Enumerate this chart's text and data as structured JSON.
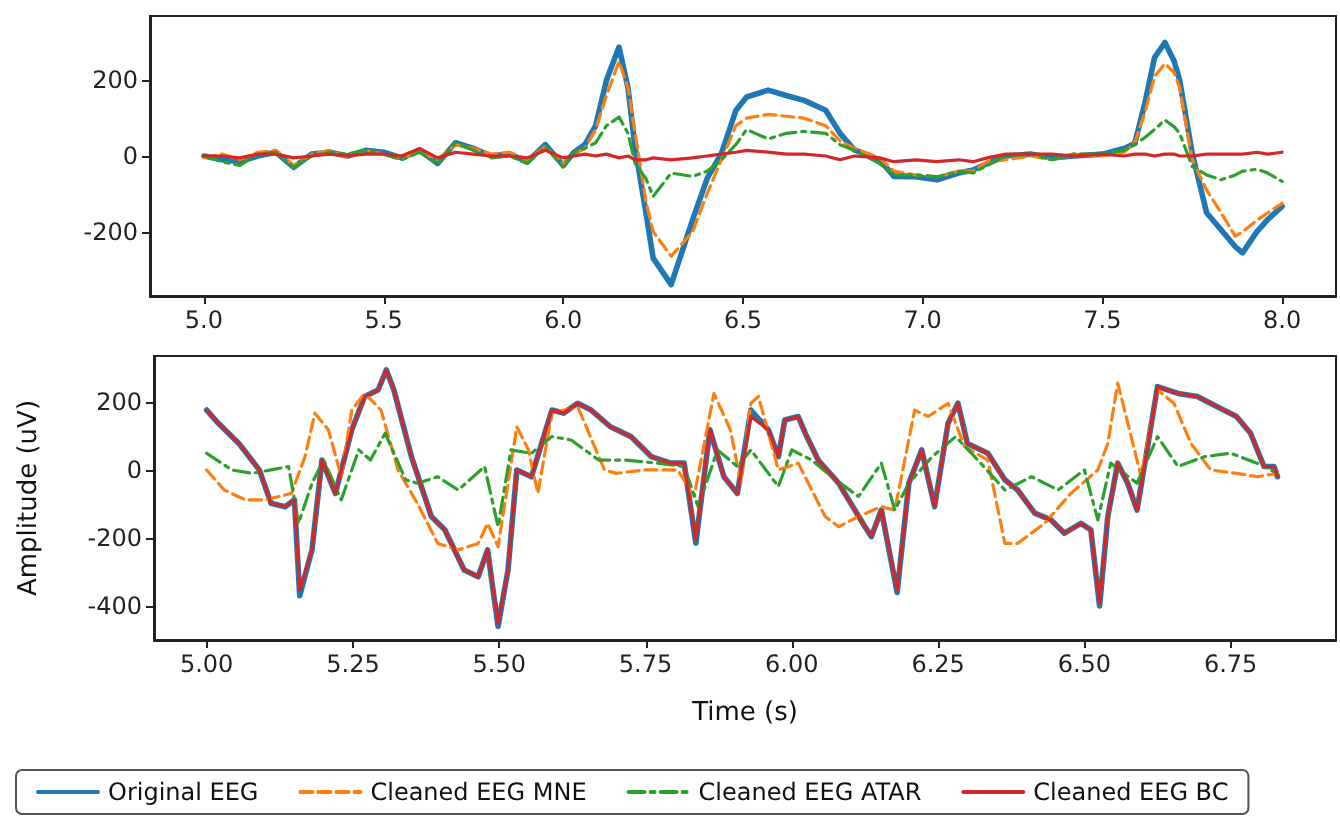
{
  "chart_data": [
    {
      "type": "line",
      "xlim": [
        4.85,
        8.15
      ],
      "ylim": [
        -370,
        370
      ],
      "xticks": [
        {
          "value": 5,
          "label": "5.0"
        },
        {
          "value": 5.5,
          "label": "5.5"
        },
        {
          "value": 6,
          "label": "6.0"
        },
        {
          "value": 6.5,
          "label": "6.5"
        },
        {
          "value": 7,
          "label": "7.0"
        },
        {
          "value": 7.5,
          "label": "7.5"
        },
        {
          "value": 8,
          "label": "8.0"
        }
      ],
      "yticks": [
        -200,
        0,
        200
      ],
      "grid": false,
      "legend": false,
      "marker": "none",
      "series": [
        {
          "color": "#1f77b4",
          "line_style": "solid",
          "x": [
            5.0,
            5.05,
            5.1,
            5.15,
            5.2,
            5.25,
            5.3,
            5.35,
            5.4,
            5.45,
            5.5,
            5.55,
            5.6,
            5.65,
            5.7,
            5.75,
            5.8,
            5.85,
            5.9,
            5.95,
            6.0,
            6.03,
            6.06,
            6.09,
            6.12,
            6.155,
            6.18,
            6.2,
            6.23,
            6.25,
            6.3,
            6.36,
            6.4,
            6.44,
            6.48,
            6.51,
            6.57,
            6.62,
            6.67,
            6.73,
            6.77,
            6.81,
            6.88,
            6.92,
            6.98,
            7.04,
            7.1,
            7.14,
            7.18,
            7.23,
            7.3,
            7.36,
            7.42,
            7.5,
            7.56,
            7.59,
            7.62,
            7.645,
            7.674,
            7.7,
            7.715,
            7.75,
            7.79,
            7.83,
            7.87,
            7.89,
            7.93,
            7.96,
            8.0
          ],
          "values": [
            0,
            -10,
            -15,
            0,
            10,
            -30,
            5,
            10,
            0,
            15,
            10,
            -5,
            15,
            -20,
            35,
            20,
            0,
            5,
            -15,
            30,
            -25,
            10,
            30,
            80,
            200,
            288,
            180,
            20,
            -150,
            -270,
            -340,
            -168,
            -60,
            7,
            120,
            156,
            174,
            160,
            147,
            121,
            60,
            16,
            -10,
            -54,
            -55,
            -63,
            -45,
            -37,
            -20,
            0,
            5,
            -5,
            0,
            5,
            20,
            33,
            147,
            260,
            300,
            250,
            200,
            7,
            -150,
            -195,
            -240,
            -256,
            -200,
            -168,
            -133
          ]
        },
        {
          "color": "#ff7f0e",
          "line_style": "dashed",
          "x": [
            5.0,
            5.05,
            5.1,
            5.15,
            5.2,
            5.25,
            5.3,
            5.35,
            5.4,
            5.45,
            5.5,
            5.55,
            5.6,
            5.65,
            5.7,
            5.75,
            5.8,
            5.85,
            5.9,
            5.95,
            6.0,
            6.03,
            6.06,
            6.09,
            6.12,
            6.155,
            6.18,
            6.2,
            6.23,
            6.25,
            6.3,
            6.36,
            6.4,
            6.44,
            6.48,
            6.51,
            6.57,
            6.62,
            6.67,
            6.73,
            6.77,
            6.81,
            6.88,
            6.92,
            6.98,
            7.04,
            7.1,
            7.14,
            7.18,
            7.23,
            7.3,
            7.36,
            7.42,
            7.5,
            7.56,
            7.59,
            7.62,
            7.645,
            7.674,
            7.7,
            7.715,
            7.75,
            7.79,
            7.83,
            7.87,
            7.89,
            7.93,
            7.96,
            8.0
          ],
          "values": [
            -5,
            5,
            -10,
            10,
            15,
            -25,
            5,
            15,
            -5,
            15,
            5,
            -5,
            10,
            -10,
            30,
            20,
            5,
            10,
            -10,
            25,
            -20,
            5,
            20,
            70,
            160,
            250,
            180,
            60,
            -120,
            -200,
            -265,
            -200,
            -100,
            -10,
            80,
            100,
            110,
            105,
            100,
            80,
            40,
            20,
            -5,
            -40,
            -50,
            -55,
            -40,
            -40,
            -15,
            -10,
            0,
            -10,
            5,
            0,
            10,
            35,
            120,
            210,
            244,
            220,
            180,
            -10,
            -90,
            -150,
            -212,
            -200,
            -170,
            -150,
            -125
          ]
        },
        {
          "color": "#2ca02c",
          "line_style": "dashdot",
          "x": [
            5.0,
            5.05,
            5.1,
            5.15,
            5.2,
            5.25,
            5.3,
            5.35,
            5.4,
            5.45,
            5.5,
            5.55,
            5.6,
            5.65,
            5.7,
            5.75,
            5.8,
            5.85,
            5.9,
            5.95,
            6.0,
            6.03,
            6.06,
            6.09,
            6.12,
            6.155,
            6.18,
            6.2,
            6.23,
            6.25,
            6.3,
            6.36,
            6.4,
            6.44,
            6.48,
            6.51,
            6.57,
            6.62,
            6.67,
            6.73,
            6.77,
            6.81,
            6.88,
            6.92,
            6.98,
            7.04,
            7.1,
            7.14,
            7.18,
            7.23,
            7.3,
            7.36,
            7.42,
            7.5,
            7.56,
            7.59,
            7.62,
            7.645,
            7.674,
            7.7,
            7.715,
            7.75,
            7.79,
            7.83,
            7.87,
            7.89,
            7.93,
            7.96,
            8.0
          ],
          "values": [
            0,
            -15,
            -25,
            5,
            10,
            -30,
            0,
            10,
            5,
            15,
            5,
            -10,
            10,
            -20,
            35,
            15,
            -5,
            0,
            -20,
            25,
            -30,
            10,
            20,
            35,
            80,
            103,
            60,
            -20,
            -60,
            -107,
            -45,
            -54,
            -40,
            -10,
            30,
            70,
            45,
            60,
            65,
            60,
            30,
            15,
            -20,
            -50,
            -50,
            -55,
            -40,
            -45,
            -25,
            0,
            5,
            -10,
            5,
            5,
            15,
            30,
            50,
            70,
            95,
            77,
            60,
            -28,
            -50,
            -63,
            -50,
            -40,
            -35,
            -45,
            -67
          ]
        },
        {
          "color": "#d62728",
          "line_style": "solid",
          "x": [
            5.0,
            5.05,
            5.1,
            5.15,
            5.2,
            5.25,
            5.3,
            5.35,
            5.4,
            5.45,
            5.5,
            5.55,
            5.6,
            5.65,
            5.7,
            5.75,
            5.8,
            5.85,
            5.9,
            5.95,
            6.0,
            6.03,
            6.06,
            6.09,
            6.12,
            6.155,
            6.18,
            6.2,
            6.23,
            6.25,
            6.3,
            6.36,
            6.4,
            6.44,
            6.48,
            6.51,
            6.57,
            6.62,
            6.67,
            6.73,
            6.77,
            6.81,
            6.88,
            6.92,
            6.98,
            7.04,
            7.1,
            7.14,
            7.18,
            7.23,
            7.3,
            7.36,
            7.42,
            7.5,
            7.56,
            7.59,
            7.62,
            7.645,
            7.674,
            7.7,
            7.715,
            7.75,
            7.79,
            7.83,
            7.87,
            7.89,
            7.93,
            7.96,
            8.0
          ],
          "values": [
            0,
            0,
            -5,
            5,
            5,
            -5,
            0,
            5,
            0,
            5,
            5,
            0,
            20,
            -5,
            10,
            5,
            0,
            0,
            -5,
            15,
            -5,
            0,
            5,
            0,
            5,
            -5,
            0,
            -10,
            -10,
            -5,
            -10,
            -5,
            0,
            5,
            10,
            15,
            10,
            5,
            5,
            0,
            -10,
            0,
            -5,
            -15,
            -10,
            -15,
            -10,
            -15,
            -5,
            5,
            5,
            5,
            0,
            5,
            0,
            5,
            5,
            0,
            5,
            5,
            0,
            0,
            5,
            5,
            5,
            5,
            10,
            5,
            10
          ]
        }
      ]
    },
    {
      "type": "line",
      "xlabel": "Time (s)",
      "ylabel": "Amplitude (uV)",
      "xlim": [
        4.91,
        6.93
      ],
      "ylim": [
        -500,
        335
      ],
      "xticks": [
        {
          "value": 5,
          "label": "5.00"
        },
        {
          "value": 5.25,
          "label": "5.25"
        },
        {
          "value": 5.5,
          "label": "5.50"
        },
        {
          "value": 5.75,
          "label": "5.75"
        },
        {
          "value": 6,
          "label": "6.00"
        },
        {
          "value": 6.25,
          "label": "6.25"
        },
        {
          "value": 6.5,
          "label": "6.50"
        },
        {
          "value": 6.75,
          "label": "6.75"
        }
      ],
      "yticks": [
        -400,
        -200,
        0,
        200
      ],
      "grid": false,
      "legend": "bottom",
      "marker": "none",
      "series": [
        {
          "name": "Original EEG",
          "color": "#1f77b4",
          "line_style": "solid",
          "x": [
            5.0,
            5.02,
            5.055,
            5.09,
            5.11,
            5.134,
            5.15,
            5.159,
            5.18,
            5.197,
            5.22,
            5.248,
            5.27,
            5.293,
            5.307,
            5.32,
            5.35,
            5.384,
            5.407,
            5.44,
            5.464,
            5.48,
            5.498,
            5.515,
            5.53,
            5.555,
            5.59,
            5.61,
            5.634,
            5.657,
            5.69,
            5.725,
            5.76,
            5.793,
            5.816,
            5.836,
            5.86,
            5.884,
            5.907,
            5.93,
            5.96,
            5.977,
            5.988,
            6.011,
            6.023,
            6.045,
            6.08,
            6.125,
            6.136,
            6.153,
            6.18,
            6.2,
            6.222,
            6.244,
            6.267,
            6.284,
            6.3,
            6.335,
            6.364,
            6.386,
            6.415,
            6.443,
            6.466,
            6.494,
            6.511,
            6.526,
            6.54,
            6.557,
            6.574,
            6.59,
            6.625,
            6.66,
            6.693,
            6.727,
            6.76,
            6.784,
            6.807,
            6.824,
            6.83
          ],
          "values": [
            176,
            137,
            78,
            0,
            -98,
            -108,
            -88,
            -370,
            -235,
            29,
            -69,
            118,
            216,
            235,
            294,
            235,
            39,
            -137,
            -176,
            -294,
            -314,
            -235,
            -460,
            -294,
            0,
            -20,
            176,
            167,
            196,
            176,
            127,
            98,
            39,
            20,
            20,
            -215,
            118,
            -20,
            -69,
            176,
            118,
            39,
            147,
            157,
            108,
            29,
            -39,
            -167,
            -196,
            -118,
            -360,
            -39,
            59,
            -108,
            137,
            196,
            78,
            49,
            -29,
            -59,
            -127,
            -147,
            -186,
            -157,
            -176,
            -400,
            -137,
            20,
            -39,
            -118,
            245,
            225,
            216,
            186,
            157,
            108,
            10,
            10,
            -20
          ]
        },
        {
          "name": "Cleaned EEG MNE",
          "color": "#ff7f0e",
          "line_style": "dashed",
          "x": [
            5.0,
            5.03,
            5.066,
            5.1,
            5.145,
            5.168,
            5.185,
            5.208,
            5.23,
            5.248,
            5.27,
            5.298,
            5.327,
            5.36,
            5.395,
            5.43,
            5.464,
            5.48,
            5.498,
            5.515,
            5.53,
            5.55,
            5.566,
            5.59,
            5.634,
            5.68,
            5.7,
            5.748,
            5.805,
            5.833,
            5.867,
            5.895,
            5.913,
            5.93,
            5.943,
            5.977,
            6.011,
            6.057,
            6.08,
            6.114,
            6.153,
            6.176,
            6.21,
            6.233,
            6.267,
            6.295,
            6.335,
            6.364,
            6.386,
            6.432,
            6.477,
            6.523,
            6.54,
            6.557,
            6.58,
            6.597,
            6.625,
            6.653,
            6.682,
            6.716,
            6.76,
            6.795,
            6.83
          ],
          "values": [
            0,
            -59,
            -88,
            -88,
            -69,
            39,
            167,
            118,
            -20,
            176,
            225,
            176,
            0,
            -98,
            -216,
            -235,
            -216,
            -157,
            -225,
            -39,
            127,
            59,
            -69,
            167,
            186,
            0,
            -10,
            0,
            0,
            -78,
            225,
            118,
            -39,
            196,
            216,
            0,
            20,
            -137,
            -167,
            -137,
            -108,
            -118,
            176,
            157,
            196,
            69,
            29,
            -216,
            -216,
            -157,
            -69,
            0,
            78,
            255,
            98,
            -20,
            235,
            196,
            78,
            0,
            -10,
            -20,
            -10
          ]
        },
        {
          "name": "Cleaned EEG ATAR",
          "color": "#2ca02c",
          "line_style": "dashdot",
          "x": [
            5.0,
            5.043,
            5.077,
            5.11,
            5.14,
            5.157,
            5.18,
            5.2,
            5.23,
            5.26,
            5.28,
            5.305,
            5.34,
            5.36,
            5.395,
            5.43,
            5.475,
            5.498,
            5.52,
            5.555,
            5.59,
            5.623,
            5.67,
            5.714,
            5.77,
            5.816,
            5.84,
            5.873,
            5.907,
            5.93,
            5.977,
            6.0,
            6.034,
            6.068,
            6.114,
            6.153,
            6.176,
            6.2,
            6.24,
            6.28,
            6.318,
            6.364,
            6.41,
            6.455,
            6.5,
            6.523,
            6.545,
            6.59,
            6.625,
            6.66,
            6.705,
            6.75,
            6.795,
            6.83
          ],
          "values": [
            49,
            0,
            -10,
            0,
            10,
            -157,
            -39,
            29,
            -88,
            59,
            29,
            108,
            -29,
            -39,
            -20,
            -59,
            10,
            -167,
            59,
            49,
            98,
            88,
            29,
            29,
            20,
            10,
            -108,
            59,
            10,
            59,
            -49,
            59,
            29,
            -20,
            -78,
            20,
            -118,
            -39,
            39,
            98,
            29,
            -59,
            -20,
            -59,
            0,
            -147,
            20,
            -39,
            98,
            10,
            39,
            49,
            20,
            -10
          ]
        },
        {
          "name": "Cleaned EEG BC",
          "color": "#d62728",
          "line_style": "solid",
          "x": [
            5.0,
            5.02,
            5.055,
            5.09,
            5.11,
            5.134,
            5.15,
            5.159,
            5.18,
            5.197,
            5.22,
            5.248,
            5.27,
            5.293,
            5.307,
            5.32,
            5.35,
            5.384,
            5.407,
            5.44,
            5.464,
            5.48,
            5.498,
            5.515,
            5.53,
            5.555,
            5.59,
            5.61,
            5.634,
            5.657,
            5.69,
            5.725,
            5.76,
            5.793,
            5.816,
            5.836,
            5.86,
            5.884,
            5.907,
            5.93,
            5.96,
            5.977,
            5.988,
            6.011,
            6.023,
            6.045,
            6.08,
            6.125,
            6.136,
            6.153,
            6.18,
            6.2,
            6.222,
            6.244,
            6.267,
            6.284,
            6.3,
            6.335,
            6.364,
            6.386,
            6.415,
            6.443,
            6.466,
            6.494,
            6.511,
            6.526,
            6.54,
            6.557,
            6.574,
            6.59,
            6.625,
            6.66,
            6.693,
            6.727,
            6.76,
            6.784,
            6.807,
            6.824,
            6.83
          ],
          "values": [
            176,
            137,
            78,
            0,
            -98,
            -108,
            -88,
            -353,
            -235,
            29,
            -69,
            118,
            216,
            235,
            294,
            235,
            39,
            -137,
            -176,
            -294,
            -314,
            -235,
            -451,
            -294,
            0,
            -20,
            176,
            167,
            196,
            176,
            127,
            98,
            39,
            20,
            20,
            -206,
            118,
            -20,
            -69,
            157,
            118,
            39,
            147,
            157,
            108,
            29,
            -39,
            -167,
            -196,
            -118,
            -353,
            -39,
            59,
            -108,
            137,
            196,
            78,
            49,
            -29,
            -59,
            -127,
            -147,
            -186,
            -157,
            -176,
            -392,
            -137,
            20,
            -39,
            -118,
            245,
            225,
            216,
            186,
            157,
            108,
            10,
            10,
            -20
          ]
        }
      ]
    }
  ]
}
